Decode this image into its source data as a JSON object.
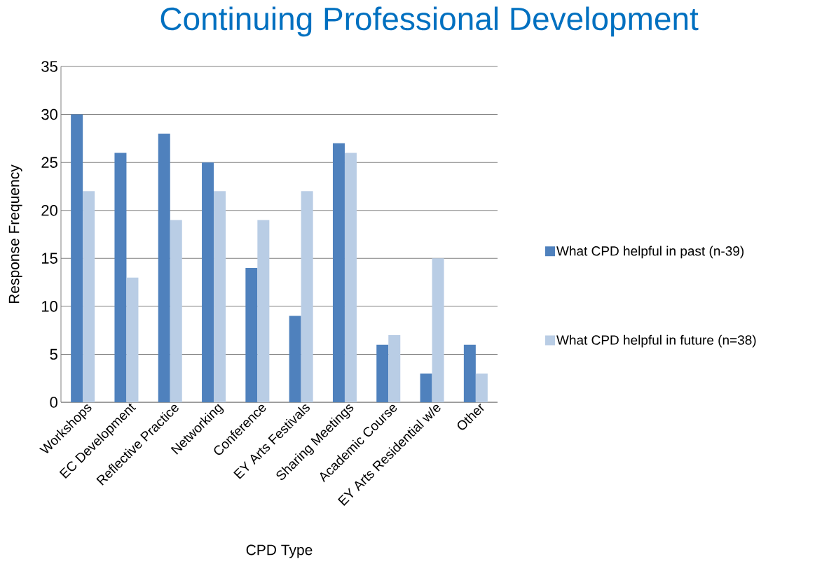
{
  "chart_data": {
    "type": "bar",
    "title": "Continuing Professional Development",
    "xlabel": "CPD Type",
    "ylabel": "Response Frequency",
    "categories": [
      "Workshops",
      "EC Development",
      "Reflective Practice",
      "Networking",
      "Conference",
      "EY Arts Festivals",
      "Sharing Meetings",
      "Academic Course",
      "EY Arts Residential w/e",
      "Other"
    ],
    "series": [
      {
        "name": "What CPD helpful in past (n-39)",
        "color": "#4f81bd",
        "values": [
          30,
          26,
          28,
          25,
          14,
          9,
          27,
          6,
          3,
          6
        ]
      },
      {
        "name": "What CPD helpful in future (n=38)",
        "color": "#b9cde5",
        "values": [
          22,
          13,
          19,
          22,
          19,
          22,
          26,
          7,
          15,
          3
        ]
      }
    ],
    "ylim": [
      0,
      35
    ],
    "yticks": [
      0,
      5,
      10,
      15,
      20,
      25,
      30,
      35
    ],
    "grid": "y",
    "legend": "right"
  }
}
